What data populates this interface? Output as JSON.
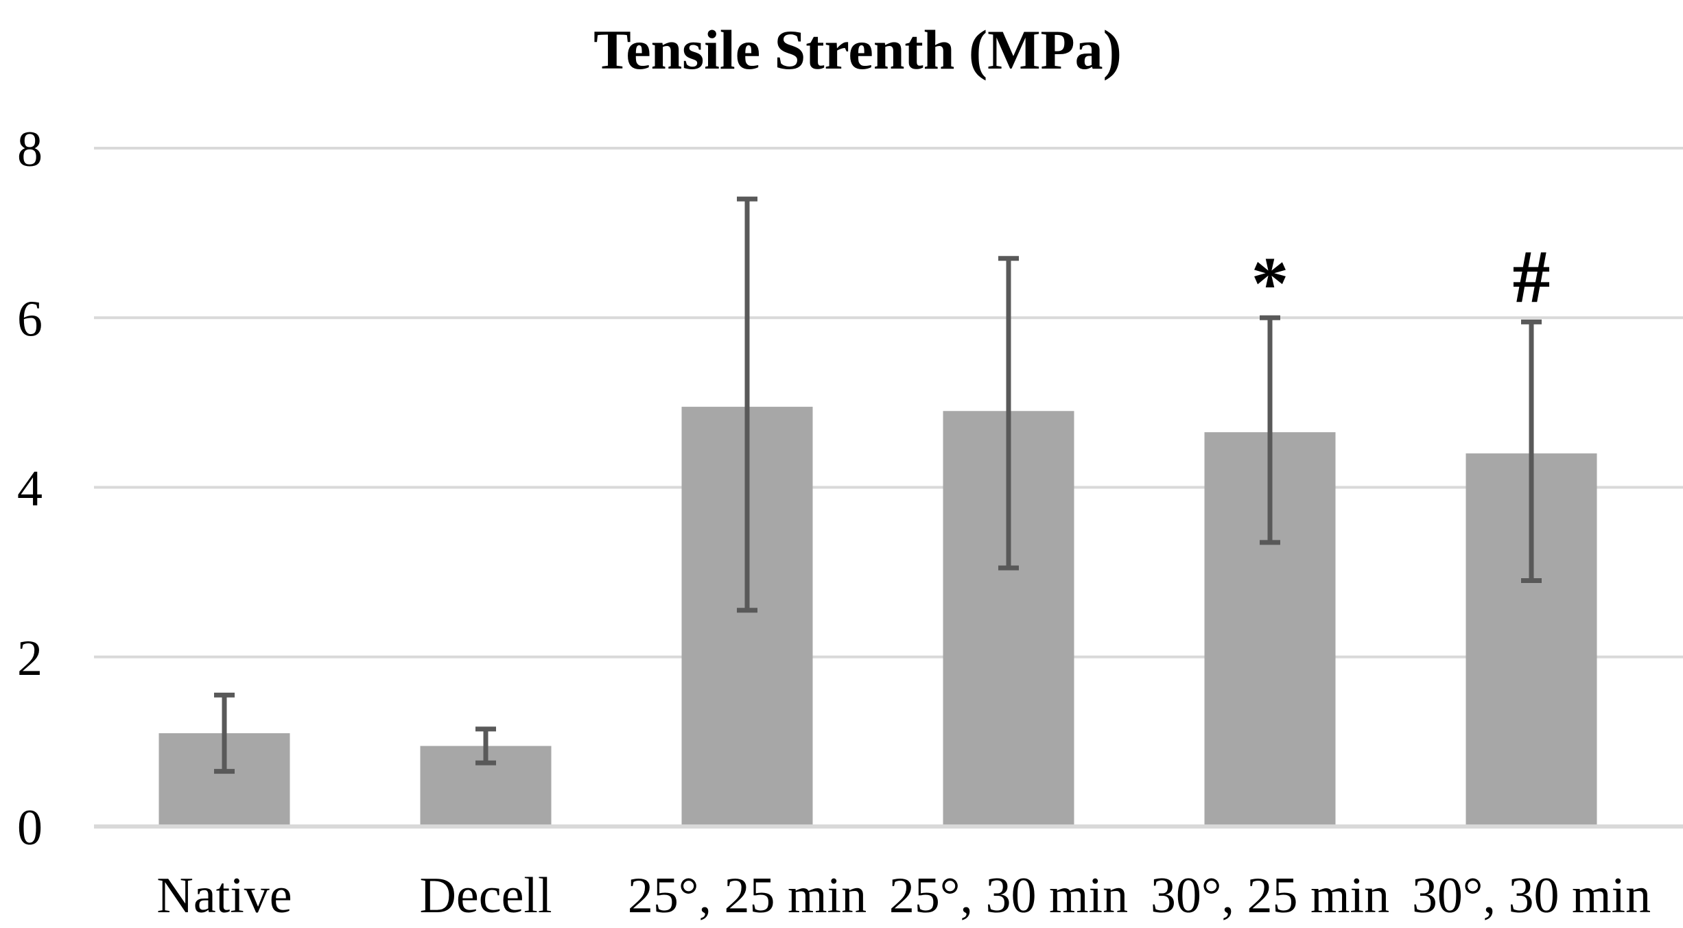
{
  "page": {
    "background": "#ffffff"
  },
  "chart_data": {
    "type": "bar",
    "title": "Tensile Strenth (MPa)",
    "categories": [
      "Native",
      "Decell",
      "25°, 25 min",
      "25°, 30 min",
      "30°, 25 min",
      "30°, 30 min"
    ],
    "values": [
      1.1,
      0.95,
      4.95,
      4.9,
      4.65,
      4.4
    ],
    "error_low": [
      0.65,
      0.75,
      2.55,
      3.05,
      3.35,
      2.9
    ],
    "error_high": [
      1.55,
      1.15,
      7.4,
      6.7,
      6.0,
      5.95
    ],
    "annotations": [
      "",
      "",
      "",
      "",
      "*",
      "#"
    ],
    "xlabel": "",
    "ylabel": "",
    "yticks": [
      0,
      2,
      4,
      6,
      8
    ],
    "ylim": [
      0,
      8
    ],
    "grid": true,
    "legend": "none",
    "bar_color": "#a7a7a7",
    "error_bar_color": "#595959",
    "gridline_color": "#d9d9d9",
    "axis_line_color": "#d9d9d9",
    "text_color": "#000000"
  }
}
